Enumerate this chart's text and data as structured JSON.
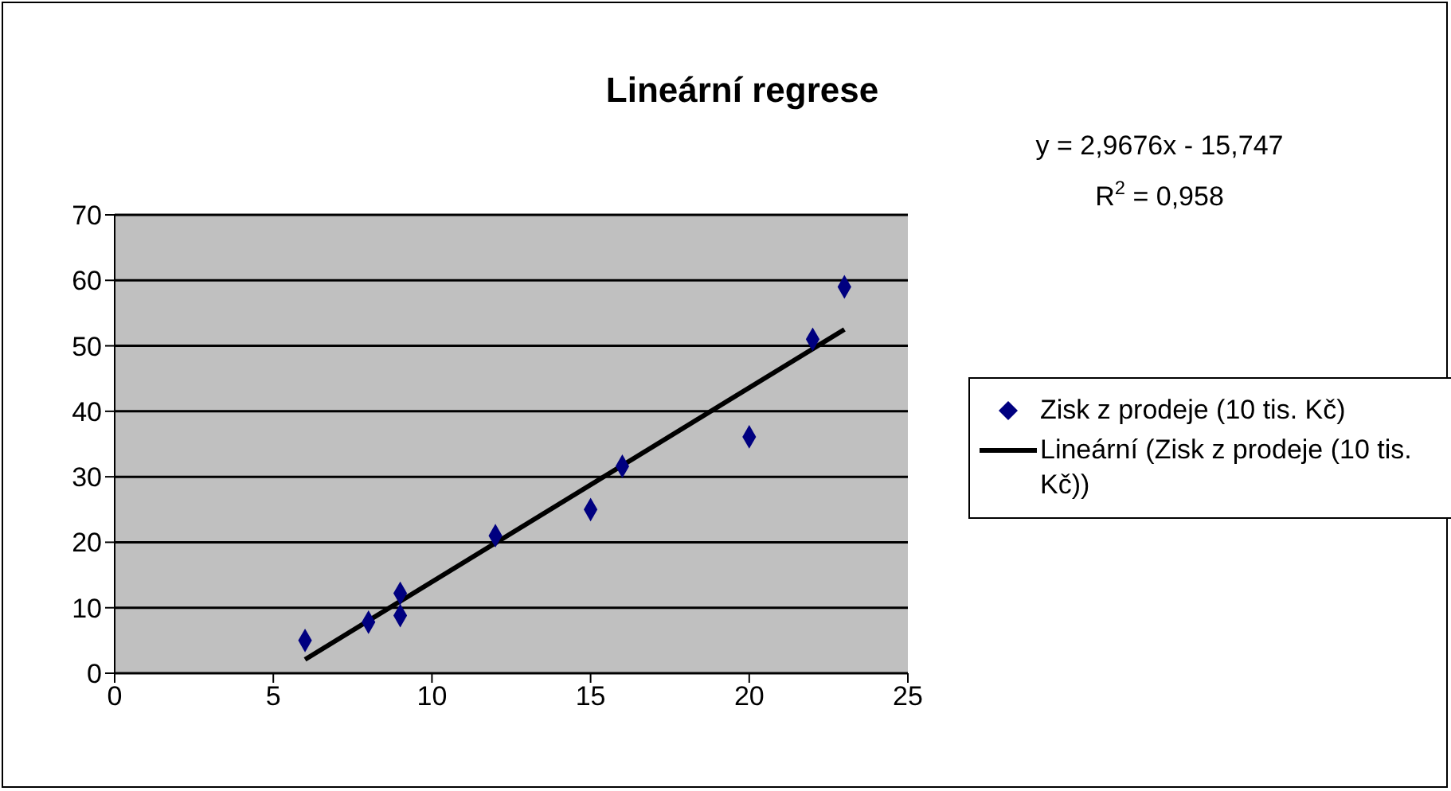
{
  "chart_data": {
    "type": "scatter",
    "title": "Lineární regrese",
    "annotations": [
      "y = 2,9676x - 15,747",
      "R$^{2}$ = 0,958"
    ],
    "series": [
      {
        "name": "Zisk z prodeje (10 tis. Kč)",
        "color": "#000080",
        "marker": "diamond",
        "x": [
          6,
          8,
          9,
          9,
          12,
          15,
          16,
          20,
          22,
          23
        ],
        "values": [
          5,
          7.8,
          12.2,
          8.8,
          21,
          25,
          31.6,
          36.1,
          51,
          59
        ]
      },
      {
        "name": "Lineární (Zisk z prodeje (10 tis. Kč))",
        "type": "line",
        "color": "#000000",
        "marker": "none",
        "line_style": "solid",
        "x": [
          6,
          23
        ],
        "values": [
          2.1,
          52.5
        ]
      }
    ],
    "xlim": [
      0,
      25
    ],
    "xticks": [
      0,
      5,
      10,
      15,
      20,
      25
    ],
    "ylim": [
      0,
      70
    ],
    "yticks": [
      0,
      10,
      20,
      30,
      40,
      50,
      60,
      70
    ],
    "grid": "y",
    "legend": "right"
  }
}
